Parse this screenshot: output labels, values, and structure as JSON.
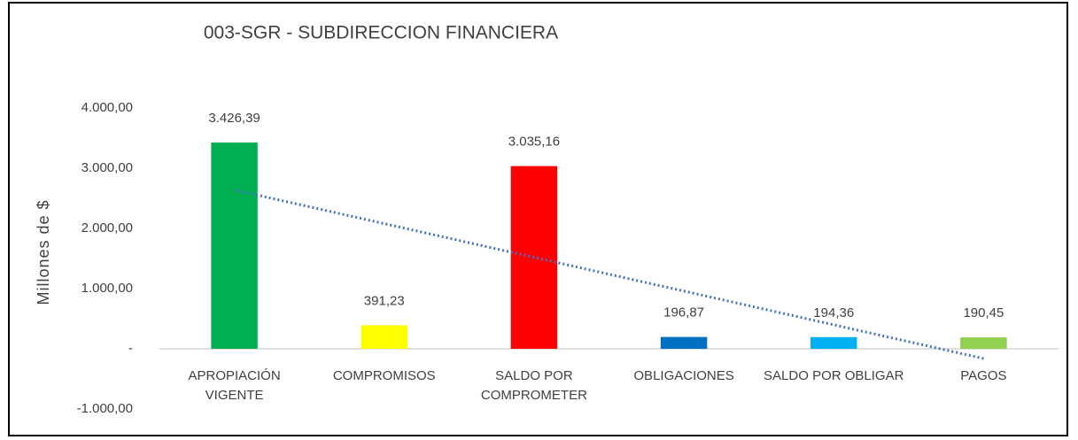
{
  "chart_data": {
    "type": "bar",
    "title": "003-SGR - SUBDIRECCION FINANCIERA",
    "y_label": "Millones de $",
    "categories": [
      "APROPIACIÓN\nVIGENTE",
      "COMPROMISOS",
      "SALDO POR\nCOMPROMETER",
      "OBLIGACIONES",
      "SALDO POR OBLIGAR",
      "PAGOS"
    ],
    "values": [
      3426.39,
      391.23,
      3035.16,
      196.87,
      194.36,
      190.45
    ],
    "value_labels": [
      "3.426,39",
      "391,23",
      "3.035,16",
      "196,87",
      "194,36",
      "190,45"
    ],
    "colors": [
      "#00b050",
      "#ffff00",
      "#ff0000",
      "#0070c0",
      "#00b0f0",
      "#92d050"
    ],
    "ylim": [
      -1000,
      4000
    ],
    "yticks": [
      {
        "value": -1000,
        "label": "-1.000,00"
      },
      {
        "value": 0,
        "label": "-"
      },
      {
        "value": 1000,
        "label": "1.000,00"
      },
      {
        "value": 2000,
        "label": "2.000,00"
      },
      {
        "value": 3000,
        "label": "3.000,00"
      },
      {
        "value": 4000,
        "label": "4.000,00"
      }
    ],
    "grid": false,
    "trendline": {
      "type": "linear",
      "color": "#4472c4"
    }
  }
}
